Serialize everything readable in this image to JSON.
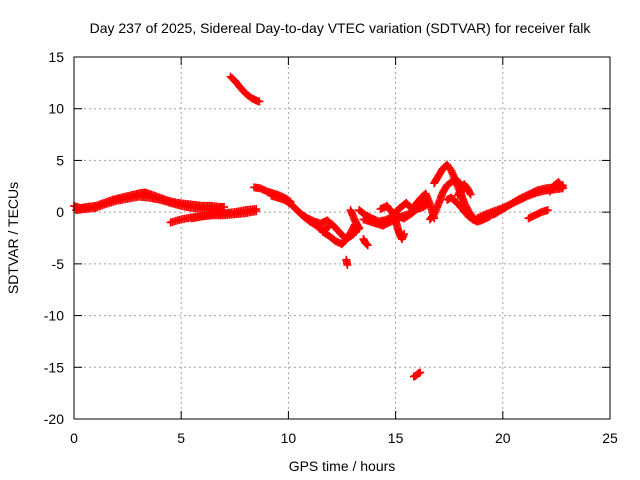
{
  "chart_data": {
    "type": "scatter",
    "title": "Day 237 of 2025, Sidereal Day-to-day VTEC variation (SDTVAR) for receiver falk",
    "xlabel": "GPS time / hours",
    "ylabel": "SDTVAR / TECUs",
    "xlim": [
      0,
      25
    ],
    "ylim": [
      -20,
      15
    ],
    "xticks": [
      0,
      5,
      10,
      15,
      20,
      25
    ],
    "yticks": [
      -20,
      -15,
      -10,
      -5,
      0,
      5,
      10,
      15
    ],
    "xtick_labels": [
      "0",
      "5",
      "10",
      "15",
      "20",
      "25"
    ],
    "ytick_labels": [
      "-20",
      "-15",
      "-10",
      "-5",
      "0",
      "5",
      "10",
      "15"
    ],
    "grid": true,
    "marker": "+",
    "series": [
      {
        "name": "SDTVAR",
        "color": "#ff0000",
        "segments": [
          {
            "x": [
              0.0,
              0.3,
              0.6,
              1.0,
              1.4,
              1.8,
              2.2,
              2.6,
              3.0,
              3.3,
              3.6,
              4.0,
              4.4,
              4.8,
              5.2,
              5.6,
              6.0,
              6.4,
              6.8,
              7.0
            ],
            "y": [
              0.6,
              0.4,
              0.5,
              0.6,
              0.9,
              1.2,
              1.4,
              1.6,
              1.8,
              1.9,
              1.7,
              1.4,
              1.1,
              0.9,
              0.8,
              0.7,
              0.6,
              0.6,
              0.5,
              0.5
            ]
          },
          {
            "x": [
              0.1,
              0.5,
              1.0,
              1.5,
              2.0,
              2.5,
              3.0,
              3.5,
              4.0,
              4.5,
              5.0,
              5.5,
              6.0,
              6.5,
              7.0
            ],
            "y": [
              0.2,
              0.3,
              0.4,
              0.8,
              1.1,
              1.3,
              1.5,
              1.4,
              1.2,
              0.9,
              0.6,
              0.4,
              0.3,
              0.2,
              0.1
            ]
          },
          {
            "x": [
              4.5,
              5.0,
              5.5,
              6.0,
              6.5,
              7.0,
              7.5,
              8.0,
              8.5
            ],
            "y": [
              -1.0,
              -0.7,
              -0.5,
              -0.4,
              -0.3,
              -0.3,
              -0.2,
              -0.1,
              0.1
            ]
          },
          {
            "x": [
              5.5,
              6.0,
              6.5,
              7.0,
              7.5,
              8.0,
              8.5
            ],
            "y": [
              -0.6,
              -0.4,
              -0.2,
              -0.1,
              0.0,
              0.2,
              0.3
            ]
          },
          {
            "x": [
              7.3,
              7.5,
              7.7,
              7.9,
              8.1,
              8.3,
              8.5,
              8.65
            ],
            "y": [
              13.1,
              12.7,
              12.2,
              11.7,
              11.3,
              11.0,
              10.8,
              10.7
            ]
          },
          {
            "x": [
              8.4,
              8.7,
              9.0,
              9.3,
              9.6,
              9.9,
              10.1
            ],
            "y": [
              2.4,
              2.3,
              2.0,
              1.8,
              1.6,
              1.3,
              1.0
            ]
          },
          {
            "x": [
              9.2,
              9.5,
              9.8,
              10.1,
              10.4,
              10.7,
              11.0,
              11.3,
              11.6,
              11.9
            ],
            "y": [
              1.6,
              1.4,
              1.2,
              0.8,
              0.2,
              -0.4,
              -0.9,
              -1.3,
              -1.8,
              -1.4
            ]
          },
          {
            "x": [
              10.6,
              10.9,
              11.2,
              11.5,
              11.8,
              12.1,
              12.4,
              12.7,
              13.0,
              13.3
            ],
            "y": [
              -0.2,
              -0.6,
              -0.9,
              -1.1,
              -0.8,
              -1.3,
              -2.0,
              -2.6,
              -2.2,
              -1.5
            ]
          },
          {
            "x": [
              11.6,
              11.9,
              12.2,
              12.5,
              12.7,
              12.9,
              13.1
            ],
            "y": [
              -1.9,
              -2.3,
              -2.8,
              -3.1,
              -2.6,
              -2.0,
              -1.2
            ]
          },
          {
            "x": [
              12.7,
              12.75
            ],
            "y": [
              -4.6,
              -5.1
            ]
          },
          {
            "x": [
              12.9,
              13.0,
              13.1,
              13.2,
              13.3
            ],
            "y": [
              0.2,
              -0.3,
              -0.8,
              -1.2,
              -1.6
            ]
          },
          {
            "x": [
              13.5,
              13.6,
              13.7
            ],
            "y": [
              -2.6,
              -3.0,
              -3.2
            ]
          },
          {
            "x": [
              13.3,
              13.6,
              13.9,
              14.2,
              14.5,
              14.8,
              15.1,
              15.4,
              15.7,
              16.0,
              16.3,
              16.5
            ],
            "y": [
              0.2,
              -0.3,
              -0.6,
              -0.9,
              -0.8,
              -0.5,
              -0.4,
              -0.6,
              -0.2,
              0.3,
              0.5,
              0.8
            ]
          },
          {
            "x": [
              13.5,
              13.8,
              14.1,
              14.4,
              14.7,
              15.0,
              15.3,
              15.6
            ],
            "y": [
              -0.7,
              -0.9,
              -1.1,
              -1.3,
              -1.0,
              -0.7,
              -0.4,
              -0.2
            ]
          },
          {
            "x": [
              14.3,
              14.6,
              14.9,
              15.2,
              15.5,
              15.8,
              16.1,
              16.4
            ],
            "y": [
              0.3,
              0.6,
              -0.2,
              0.4,
              0.9,
              0.2,
              0.6,
              1.2
            ]
          },
          {
            "x": [
              15.0,
              15.1,
              15.2,
              15.3,
              15.4
            ],
            "y": [
              -0.8,
              -1.6,
              -2.2,
              -2.6,
              -2.1
            ]
          },
          {
            "x": [
              15.8,
              16.0,
              16.2,
              16.4,
              16.6,
              16.8
            ],
            "y": [
              0.4,
              0.9,
              1.4,
              1.8,
              0.8,
              -0.6
            ]
          },
          {
            "x": [
              16.6,
              16.8,
              17.0,
              17.2,
              17.4,
              17.6,
              17.8,
              18.0,
              18.2
            ],
            "y": [
              -0.7,
              -0.2,
              0.8,
              1.9,
              2.6,
              2.9,
              3.2,
              2.8,
              2.2
            ]
          },
          {
            "x": [
              16.8,
              17.0,
              17.2,
              17.4,
              17.6,
              17.8,
              18.0,
              18.2,
              18.4,
              18.6,
              18.8
            ],
            "y": [
              2.8,
              3.5,
              4.2,
              4.6,
              4.0,
              3.0,
              2.0,
              0.9,
              0.1,
              -0.5,
              -0.9
            ]
          },
          {
            "x": [
              17.4,
              17.6,
              17.8,
              18.0,
              18.2,
              18.4,
              18.6,
              18.8,
              19.0,
              19.2,
              19.4
            ],
            "y": [
              1.2,
              1.4,
              1.0,
              0.6,
              0.1,
              -0.4,
              -0.7,
              -0.9,
              -0.8,
              -0.6,
              -0.4
            ]
          },
          {
            "x": [
              17.9,
              18.05,
              18.2,
              18.35,
              18.5
            ],
            "y": [
              1.6,
              2.2,
              2.7,
              2.3,
              1.7
            ]
          },
          {
            "x": [
              18.8,
              19.2,
              19.6,
              20.0,
              20.4,
              20.8,
              21.2,
              21.6,
              22.0,
              22.4,
              22.8
            ],
            "y": [
              -0.6,
              -0.2,
              0.1,
              0.4,
              0.8,
              1.2,
              1.6,
              1.9,
              2.1,
              2.2,
              2.3
            ]
          },
          {
            "x": [
              19.2,
              19.6,
              20.0,
              20.4,
              20.8,
              21.2,
              21.6,
              22.0,
              22.4,
              22.8
            ],
            "y": [
              -0.4,
              -0.2,
              0.3,
              0.8,
              1.3,
              1.7,
              2.1,
              2.3,
              2.4,
              2.6
            ]
          },
          {
            "x": [
              21.2,
              21.5,
              21.8,
              22.1
            ],
            "y": [
              -0.6,
              -0.3,
              0.0,
              0.2
            ]
          },
          {
            "x": [
              22.2,
              22.4,
              22.6,
              22.8
            ],
            "y": [
              2.0,
              2.6,
              2.9,
              2.4
            ]
          },
          {
            "x": [
              15.85,
              15.95,
              16.05,
              16.15
            ],
            "y": [
              -15.9,
              -15.8,
              -15.6,
              -15.5
            ]
          }
        ]
      }
    ]
  }
}
